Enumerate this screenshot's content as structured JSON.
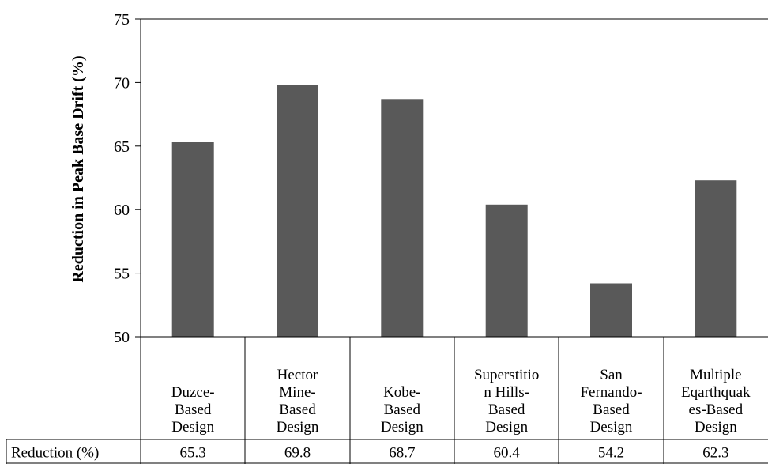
{
  "chart_data": {
    "type": "bar",
    "categories": [
      [
        "Duzce-",
        "Based",
        "Design"
      ],
      [
        "Hector",
        "Mine-",
        "Based",
        "Design"
      ],
      [
        "Kobe-",
        "Based",
        "Design"
      ],
      [
        "Superstitio",
        "n Hills-",
        "Based",
        "Design"
      ],
      [
        "San",
        "Fernando-",
        "Based",
        "Design"
      ],
      [
        "Multiple",
        "Eqarthquak",
        "es-Based",
        "Design"
      ]
    ],
    "series": [
      {
        "name": "Reduction (%)",
        "values": [
          65.3,
          69.8,
          68.7,
          60.4,
          54.2,
          62.3
        ]
      }
    ],
    "value_labels": [
      "65.3",
      "69.8",
      "68.7",
      "60.4",
      "54.2",
      "62.3"
    ],
    "ylabel": "Reduction in Peak Base Drift (%)",
    "xlabel": "",
    "ylim": [
      50,
      75
    ],
    "yticks": [
      "50",
      "55",
      "60",
      "65",
      "70",
      "75"
    ],
    "ytick_values": [
      50,
      55,
      60,
      65,
      70,
      75
    ],
    "grid": false,
    "data_table": true,
    "bar_color": "#595959",
    "line_color": "#000000"
  }
}
